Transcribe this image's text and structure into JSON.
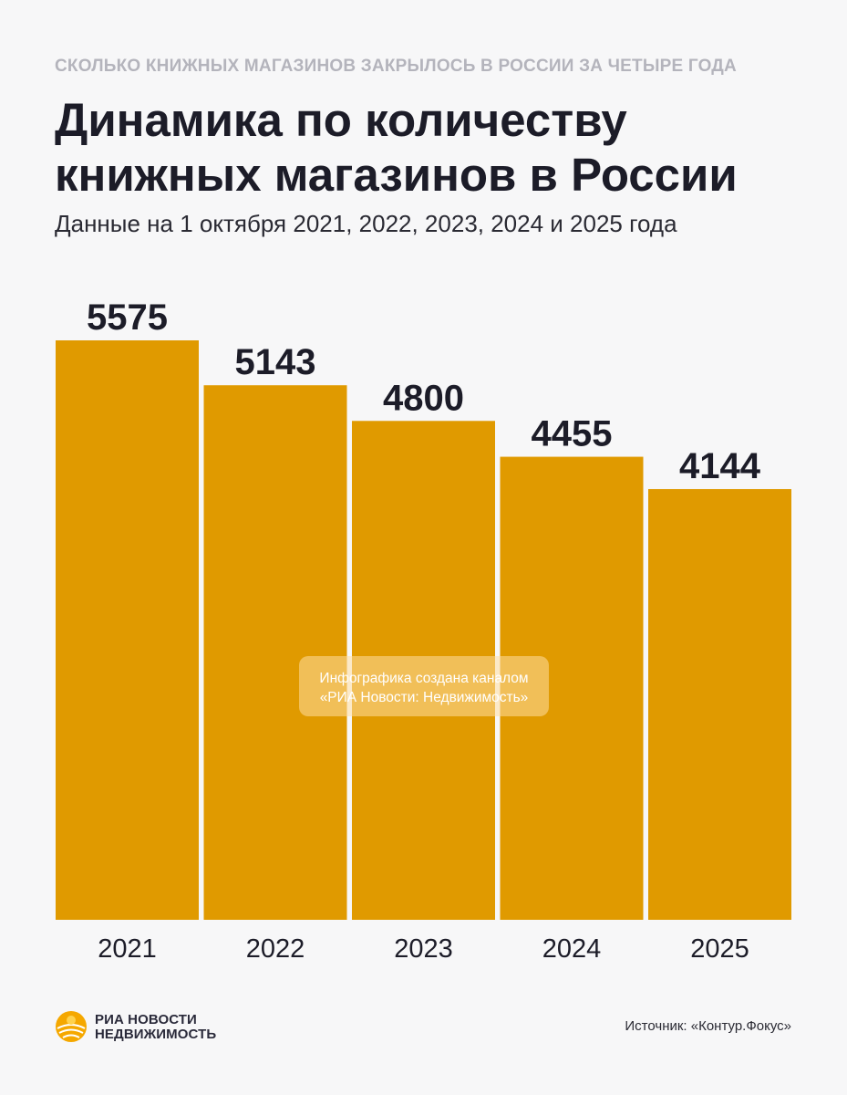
{
  "header": {
    "kicker": "СКОЛЬКО КНИЖНЫХ МАГАЗИНОВ ЗАКРЫЛОСЬ В РОССИИ ЗА ЧЕТЫРЕ ГОДА",
    "title": "Динамика по количеству книжных магазинов в России",
    "subtitle": "Данные на 1 октября 2021, 2022, 2023, 2024 и 2025 года"
  },
  "watermark": {
    "line1": "Инфографика создана каналом",
    "line2": "«РИА Новости: Недвижимость»"
  },
  "footer": {
    "logo_line1": "РИА НОВОСТИ",
    "logo_line2": "НЕДВИЖИМОСТЬ",
    "source": "Источник: «Контур.Фокус»"
  },
  "colors": {
    "bar": "#e09a00",
    "background": "#f7f7f8",
    "text": "#1c1c28"
  },
  "icons": {
    "logo": "ria-novosti-sun-icon"
  },
  "chart_data": {
    "type": "bar",
    "title": "Динамика по количеству книжных магазинов в России",
    "categories": [
      "2021",
      "2022",
      "2023",
      "2024",
      "2025"
    ],
    "values": [
      5575,
      5143,
      4800,
      4455,
      4144
    ],
    "data_labels": [
      "5575",
      "5143",
      "4800",
      "4455",
      "4144"
    ],
    "xlabel": "",
    "ylabel": "",
    "ylim": [
      0,
      5575
    ],
    "grid": false,
    "legend": "none"
  }
}
